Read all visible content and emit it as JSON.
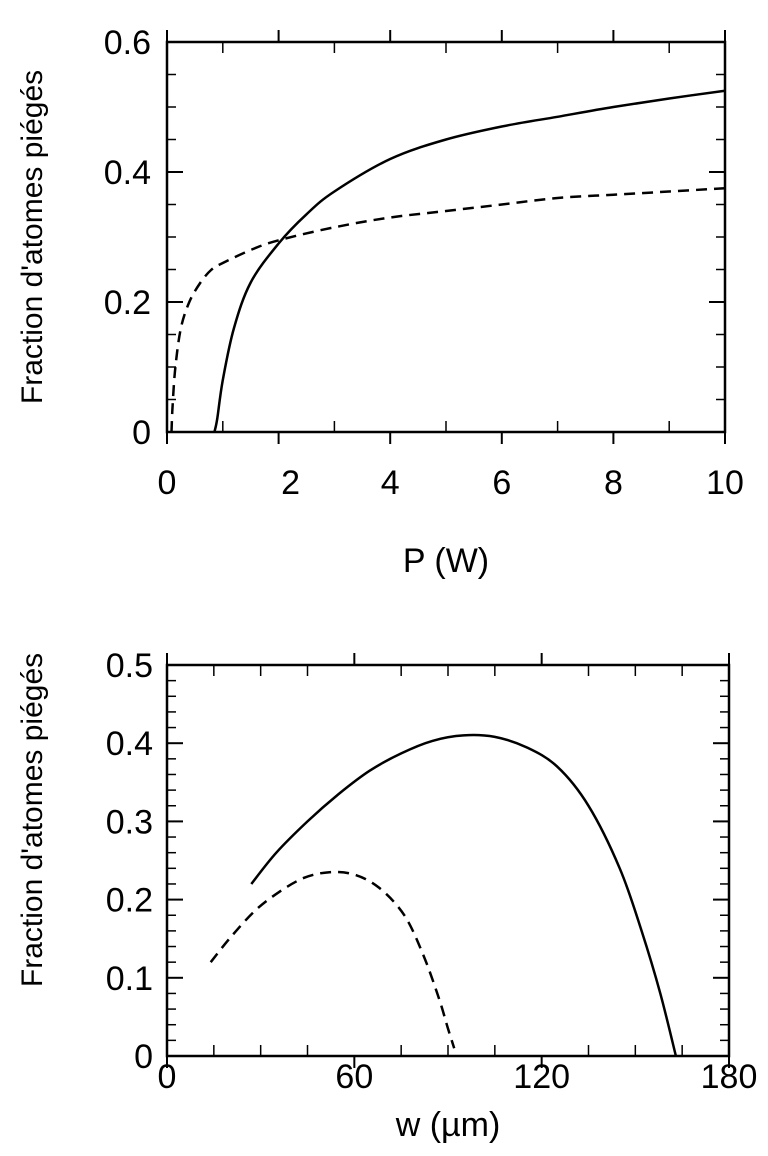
{
  "chart_data": [
    {
      "type": "line",
      "title": "",
      "xlabel": "P (W)",
      "ylabel": "Fraction d'atomes piégés",
      "xlim": [
        0,
        10
      ],
      "ylim": [
        0,
        0.6
      ],
      "x_ticks": [
        0,
        2,
        4,
        6,
        8,
        10
      ],
      "x_tick_labels": [
        "0",
        "2",
        "4",
        "6",
        "8",
        "10"
      ],
      "y_ticks": [
        0,
        0.2,
        0.4,
        0.6
      ],
      "y_tick_labels": [
        "0",
        "0.2",
        "0.4",
        "0.6"
      ],
      "x_minor_step": 1,
      "y_minor_step": 0.05,
      "grid": false,
      "legend": "none",
      "series": [
        {
          "style": "solid",
          "color": "#000000",
          "x": [
            0.85,
            0.9,
            1.0,
            1.2,
            1.5,
            2.0,
            2.5,
            3.0,
            4.0,
            5.0,
            6.0,
            7.0,
            8.0,
            9.0,
            10.0
          ],
          "y": [
            0.0,
            0.02,
            0.08,
            0.16,
            0.23,
            0.29,
            0.335,
            0.37,
            0.42,
            0.45,
            0.47,
            0.485,
            0.5,
            0.513,
            0.525
          ]
        },
        {
          "style": "dashed",
          "color": "#000000",
          "x": [
            0.08,
            0.1,
            0.15,
            0.25,
            0.4,
            0.6,
            0.8,
            1.0,
            1.5,
            2.0,
            3.0,
            4.0,
            5.0,
            6.0,
            7.0,
            8.0,
            9.0,
            10.0
          ],
          "y": [
            0.0,
            0.04,
            0.1,
            0.16,
            0.2,
            0.23,
            0.25,
            0.26,
            0.28,
            0.295,
            0.315,
            0.33,
            0.34,
            0.35,
            0.36,
            0.365,
            0.37,
            0.375
          ]
        }
      ]
    },
    {
      "type": "line",
      "title": "",
      "xlabel": "w (µm)",
      "ylabel": "Fraction d'atomes piégés",
      "xlim": [
        0,
        180
      ],
      "ylim": [
        0,
        0.5
      ],
      "x_ticks": [
        0,
        60,
        120,
        180
      ],
      "x_tick_labels": [
        "0",
        "60",
        "120",
        "180"
      ],
      "y_ticks": [
        0,
        0.1,
        0.2,
        0.3,
        0.4,
        0.5
      ],
      "y_tick_labels": [
        "0",
        "0.1",
        "0.2",
        "0.3",
        "0.4",
        "0.5"
      ],
      "x_minor_step": 15,
      "y_minor_step": 0.02,
      "grid": false,
      "legend": "none",
      "series": [
        {
          "style": "solid",
          "color": "#000000",
          "x": [
            27,
            35,
            45,
            55,
            65,
            75,
            85,
            95,
            105,
            115,
            125,
            135,
            145,
            152,
            158,
            163
          ],
          "y": [
            0.22,
            0.26,
            0.3,
            0.335,
            0.365,
            0.387,
            0.403,
            0.41,
            0.408,
            0.395,
            0.37,
            0.32,
            0.24,
            0.16,
            0.08,
            0.0
          ]
        },
        {
          "style": "dashed",
          "color": "#000000",
          "x": [
            14,
            20,
            28,
            36,
            44,
            52,
            60,
            68,
            76,
            82,
            87,
            90,
            92
          ],
          "y": [
            0.12,
            0.15,
            0.185,
            0.21,
            0.228,
            0.235,
            0.232,
            0.215,
            0.18,
            0.13,
            0.075,
            0.035,
            0.01
          ]
        }
      ]
    }
  ]
}
